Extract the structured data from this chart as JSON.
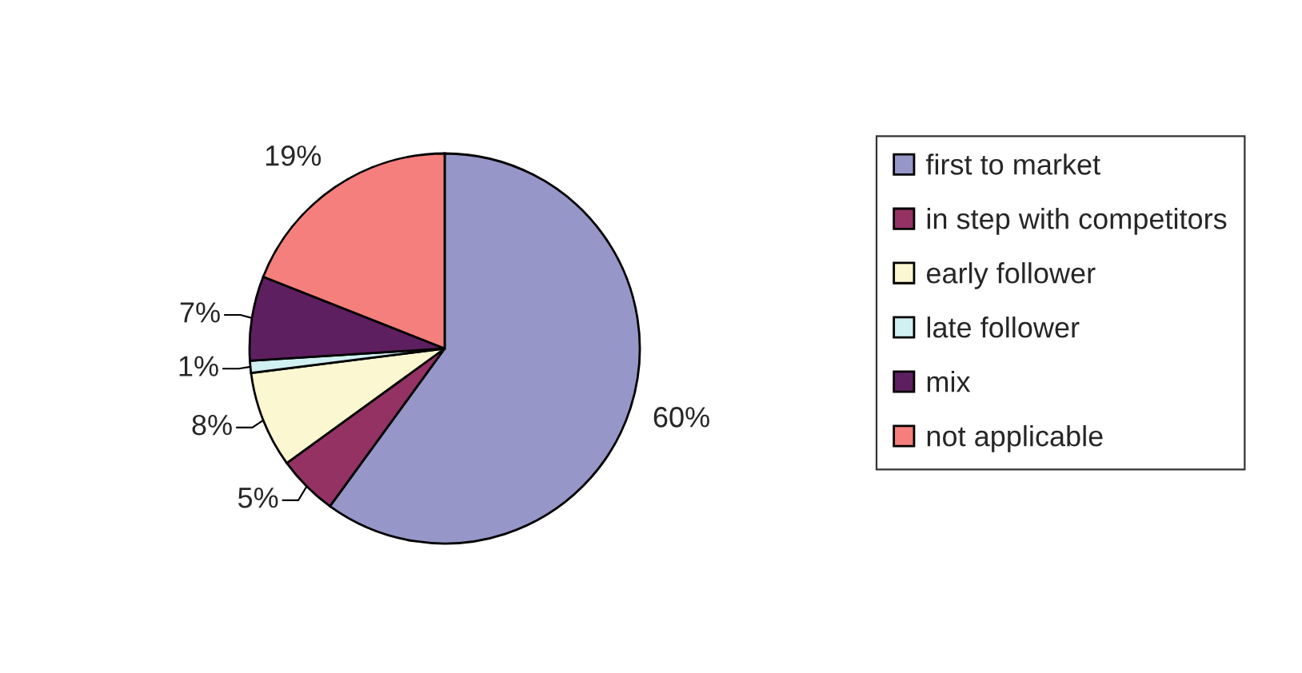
{
  "chart_data": {
    "type": "pie",
    "categories": [
      "first to market",
      "in step with competitors",
      "early follower",
      "late follower",
      "mix",
      "not applicable"
    ],
    "values": [
      60,
      5,
      8,
      1,
      7,
      19
    ],
    "colors": [
      "#9696c8",
      "#943264",
      "#fbf7d0",
      "#d0f0f2",
      "#5e1f60",
      "#f57f7c"
    ],
    "value_labels": [
      "60%",
      "5%",
      "8%",
      "1%",
      "7%",
      "19%"
    ],
    "legend": "right"
  }
}
